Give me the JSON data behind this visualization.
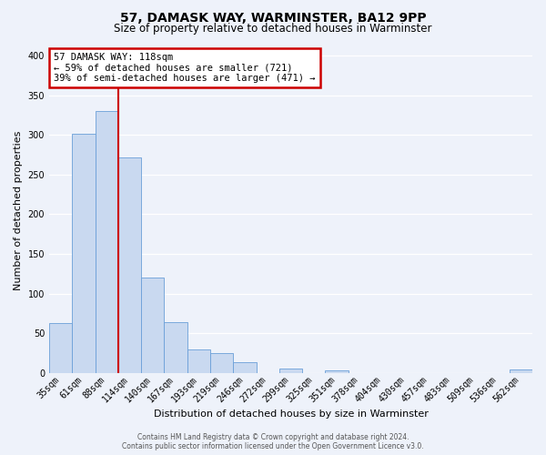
{
  "title1": "57, DAMASK WAY, WARMINSTER, BA12 9PP",
  "title2": "Size of property relative to detached houses in Warminster",
  "xlabel": "Distribution of detached houses by size in Warminster",
  "ylabel": "Number of detached properties",
  "bar_labels": [
    "35sqm",
    "61sqm",
    "88sqm",
    "114sqm",
    "140sqm",
    "167sqm",
    "193sqm",
    "219sqm",
    "246sqm",
    "272sqm",
    "299sqm",
    "325sqm",
    "351sqm",
    "378sqm",
    "404sqm",
    "430sqm",
    "457sqm",
    "483sqm",
    "509sqm",
    "536sqm",
    "562sqm"
  ],
  "bar_values": [
    63,
    302,
    330,
    272,
    120,
    64,
    29,
    25,
    13,
    0,
    5,
    0,
    3,
    0,
    0,
    0,
    0,
    0,
    0,
    0,
    4
  ],
  "bar_color": "#c9d9f0",
  "bar_edge_color": "#6a9fd8",
  "vline_color": "#cc0000",
  "vline_position": 3,
  "ylim": [
    0,
    410
  ],
  "yticks": [
    0,
    50,
    100,
    150,
    200,
    250,
    300,
    350,
    400
  ],
  "annotation_title": "57 DAMASK WAY: 118sqm",
  "annotation_line1": "← 59% of detached houses are smaller (721)",
  "annotation_line2": "39% of semi-detached houses are larger (471) →",
  "annotation_box_color": "#ffffff",
  "annotation_box_edge": "#cc0000",
  "footer1": "Contains HM Land Registry data © Crown copyright and database right 2024.",
  "footer2": "Contains public sector information licensed under the Open Government Licence v3.0.",
  "background_color": "#eef2fa",
  "grid_color": "#ffffff",
  "title_fontsize": 10,
  "subtitle_fontsize": 8.5,
  "ylabel_fontsize": 8,
  "xlabel_fontsize": 8,
  "tick_fontsize": 7,
  "annotation_fontsize": 7.5,
  "footer_fontsize": 5.5
}
